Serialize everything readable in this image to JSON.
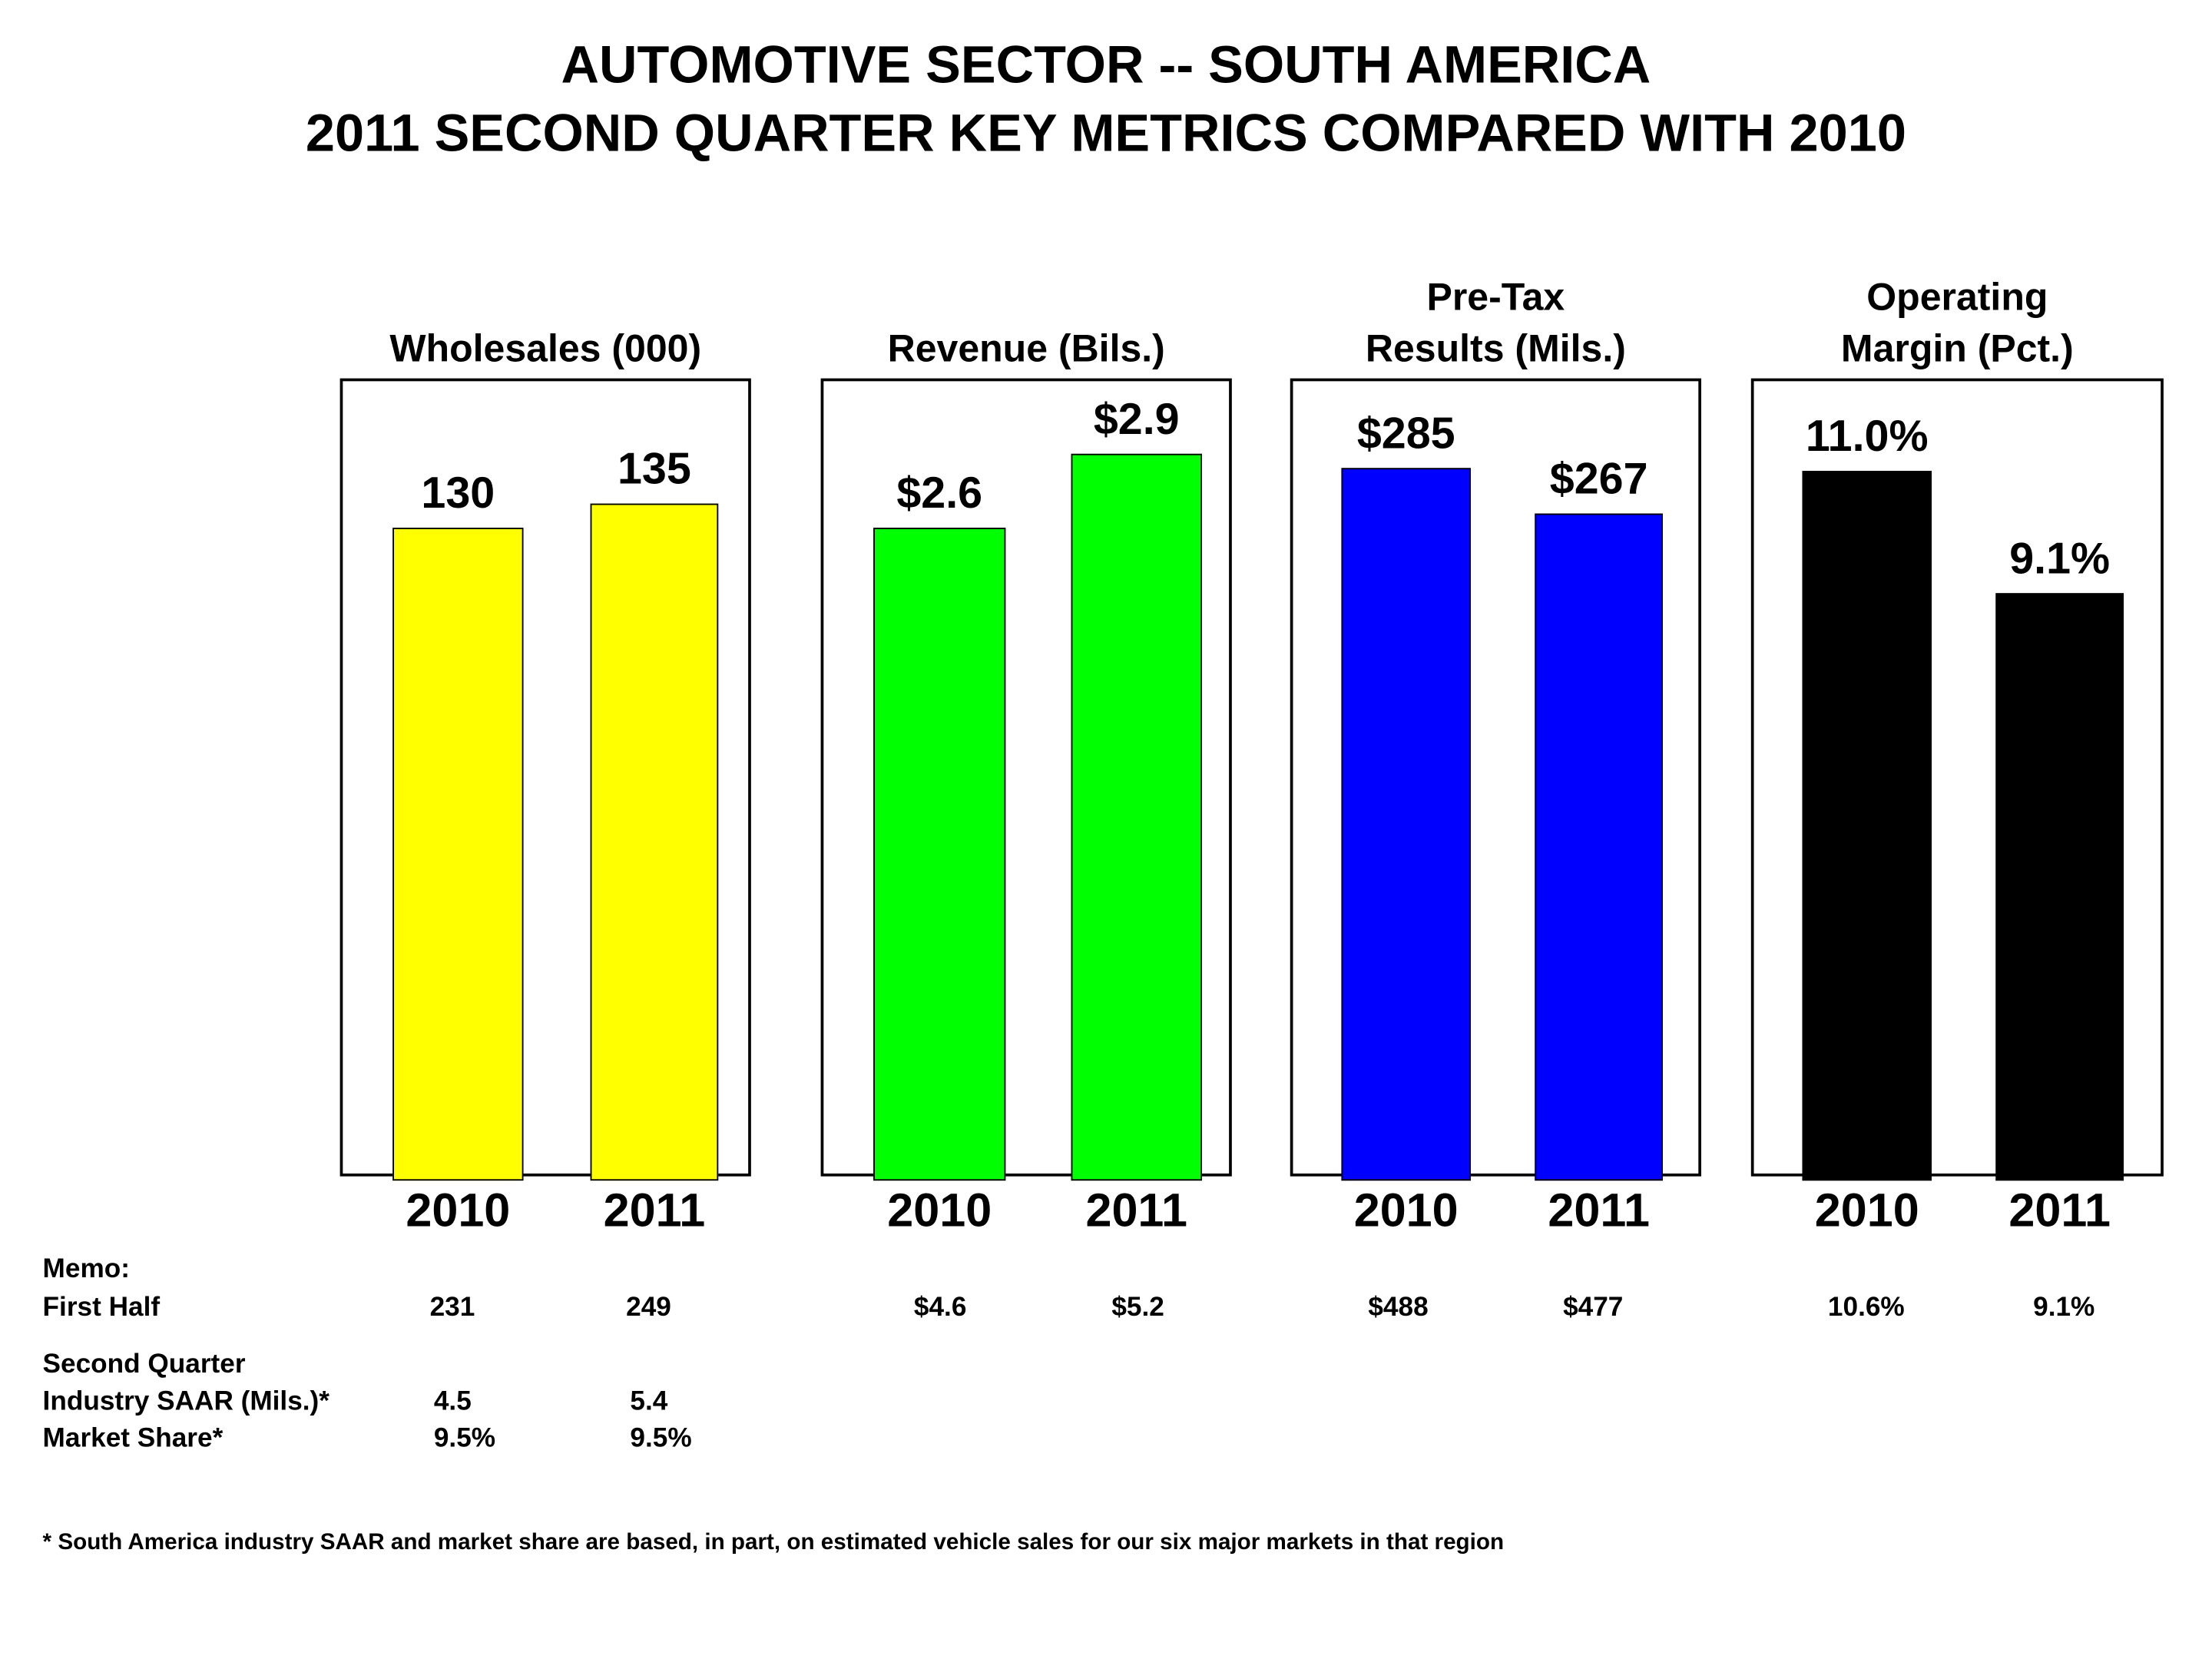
{
  "title": {
    "line1": "AUTOMOTIVE SECTOR -- SOUTH AMERICA",
    "line2": "2011 SECOND QUARTER KEY METRICS COMPARED WITH 2010"
  },
  "chart_data": [
    {
      "type": "bar",
      "title_lines": [
        "Wholesales (000)"
      ],
      "categories": [
        "2010",
        "2011"
      ],
      "values": [
        130,
        135
      ],
      "labels": [
        "130",
        "135"
      ],
      "color": "#FFFF00",
      "ylim": [
        0,
        160
      ]
    },
    {
      "type": "bar",
      "title_lines": [
        "Revenue (Bils.)"
      ],
      "categories": [
        "2010",
        "2011"
      ],
      "values": [
        2.6,
        2.9
      ],
      "labels": [
        "$2.6",
        "$2.9"
      ],
      "color": "#00FF00",
      "ylim": [
        0,
        3.2
      ]
    },
    {
      "type": "bar",
      "title_lines": [
        "Pre-Tax",
        "Results (Mils.)"
      ],
      "categories": [
        "2010",
        "2011"
      ],
      "values": [
        285,
        267
      ],
      "labels": [
        "$285",
        "$267"
      ],
      "color": "#0000FF",
      "ylim": [
        0,
        321
      ]
    },
    {
      "type": "bar",
      "title_lines": [
        "Operating",
        "Margin (Pct.)"
      ],
      "categories": [
        "2010",
        "2011"
      ],
      "values": [
        11.0,
        9.1
      ],
      "labels": [
        "11.0%",
        "9.1%"
      ],
      "color": "#000000",
      "ylim": [
        0,
        12.44
      ]
    }
  ],
  "memo": {
    "header": "Memo:",
    "first_half_label": "First Half",
    "first_half_values": [
      "231",
      "249",
      "$4.6",
      "$5.2",
      "$488",
      "$477",
      "10.6%",
      "9.1%"
    ],
    "second_quarter_label": "Second Quarter",
    "saar_label": "Industry SAAR (Mils.)*",
    "saar_values": [
      "4.5",
      "5.4"
    ],
    "share_label": "Market Share*",
    "share_values": [
      "9.5%",
      "9.5%"
    ]
  },
  "footnote": "*  South America industry SAAR and market share are based, in part, on estimated vehicle sales for our six major markets in that region"
}
